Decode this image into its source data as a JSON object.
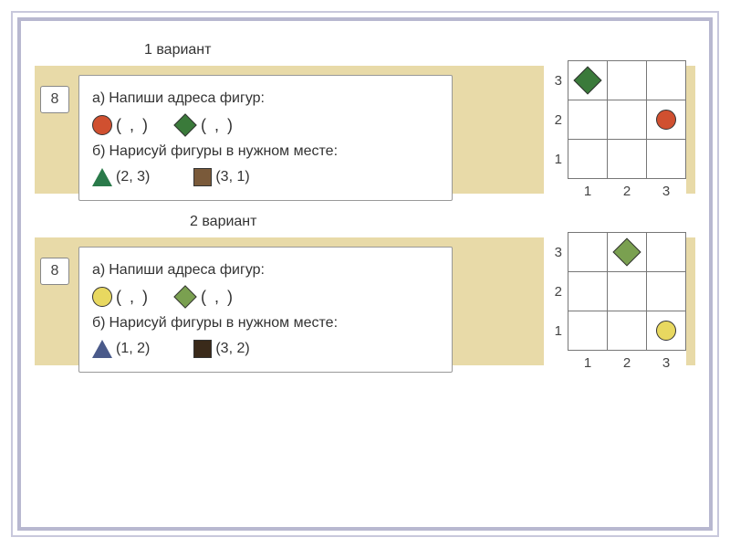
{
  "variant1": {
    "label": "1 вариант",
    "number": "8",
    "task_a_prefix": "а)",
    "task_a_text": "Напиши адреса фигур:",
    "task_b_prefix": "б)",
    "task_b_text": "Нарисуй фигуры в нужном месте:",
    "blank_coord": "(     ,     )",
    "tri_coord": "(2, 3)",
    "sq_coord": "(3, 1)",
    "shapes": {
      "circle_fill": "#d05030",
      "diamond_fill": "#3a7a3a",
      "triangle_fill": "#2a7a4a",
      "square_fill": "#7a5a3a"
    },
    "grid": {
      "y_labels": [
        "3",
        "2",
        "1"
      ],
      "x_labels": [
        "1",
        "2",
        "3"
      ],
      "diamond_cell": {
        "row": 0,
        "col": 0,
        "fill": "#3a7a3a"
      },
      "circle_cell": {
        "row": 1,
        "col": 2,
        "fill": "#d05030"
      }
    }
  },
  "variant2": {
    "label": "2 вариант",
    "number": "8",
    "task_a_prefix": "а)",
    "task_a_text": "Напиши адреса фигур:",
    "task_b_prefix": "б)",
    "task_b_text": "Нарисуй фигуры в нужном месте:",
    "blank_coord": "(     ,     )",
    "tri_coord": "(1, 2)",
    "sq_coord": "(3, 2)",
    "shapes": {
      "circle_fill": "#e8d860",
      "diamond_fill": "#7aa050",
      "triangle_fill": "#4a5a8a",
      "square_fill": "#3a2a1a"
    },
    "grid": {
      "y_labels": [
        "3",
        "2",
        "1"
      ],
      "x_labels": [
        "1",
        "2",
        "3"
      ],
      "diamond_cell": {
        "row": 0,
        "col": 1,
        "fill": "#7aa050"
      },
      "circle_cell": {
        "row": 2,
        "col": 2,
        "fill": "#e8d860"
      }
    }
  }
}
